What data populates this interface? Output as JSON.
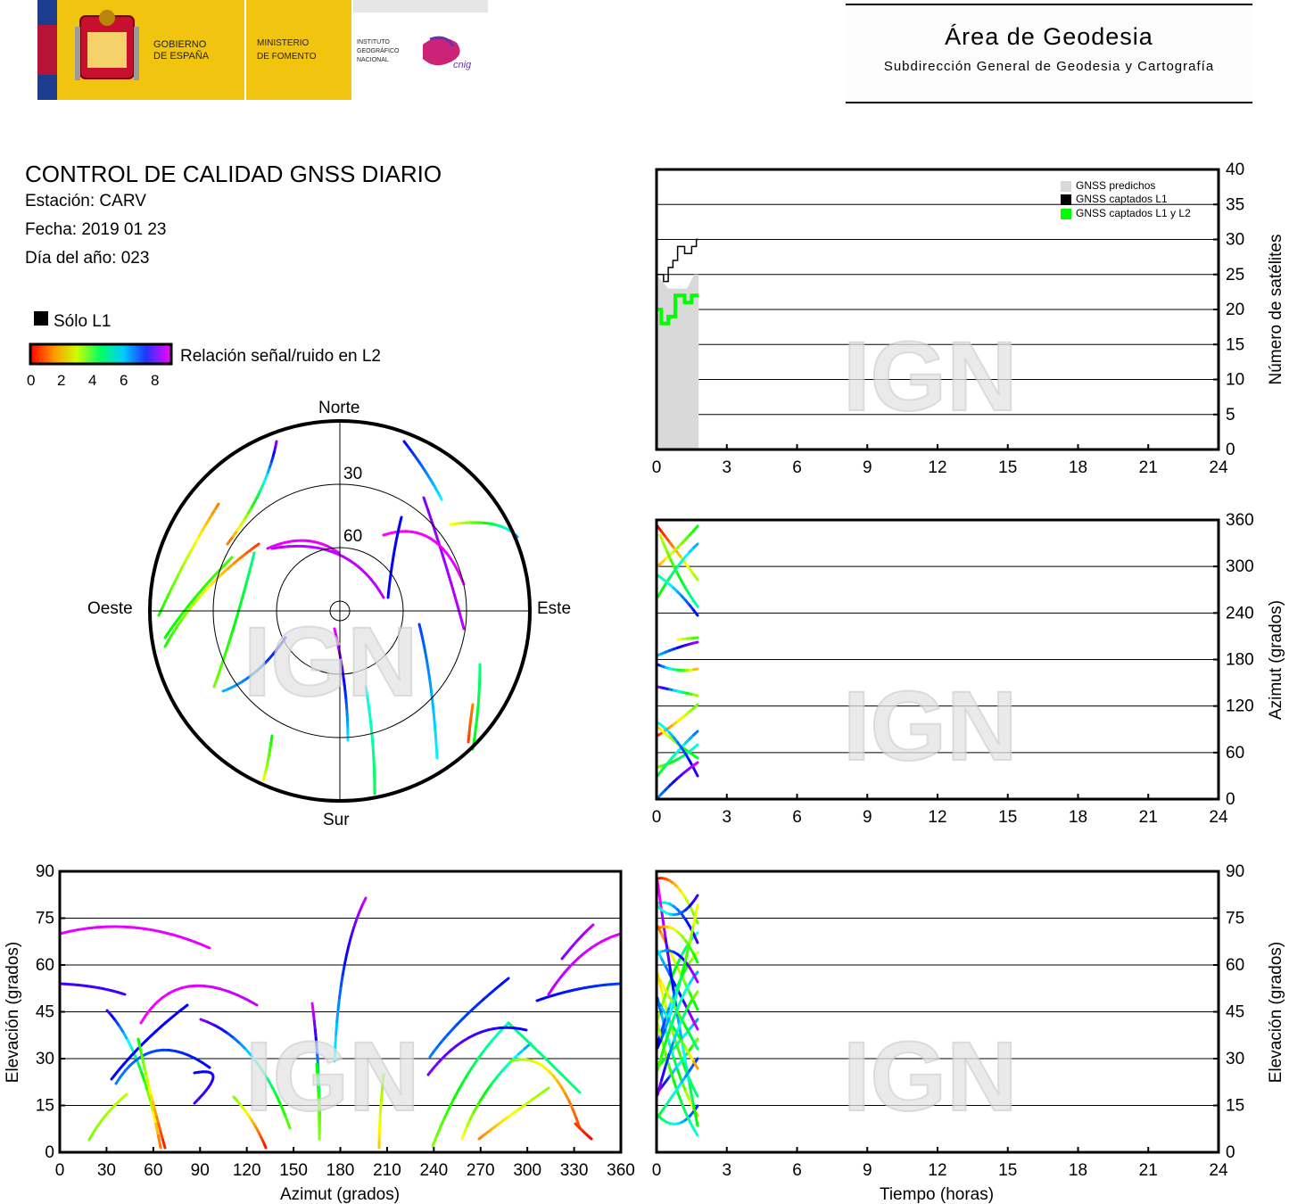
{
  "header": {
    "gov_line1": "GOBIERNO",
    "gov_line2": "DE ESPAÑA",
    "min_line1": "MINISTERIO",
    "min_line2": "DE FOMENTO",
    "inst_line1": "INSTITUTO",
    "inst_line2": "GEOGRÁFICO",
    "inst_line3": "NACIONAL",
    "cnig": "cnig",
    "area_title": "Área de Geodesia",
    "area_subtitle": "Subdirección General de Geodesia y Cartografía"
  },
  "info": {
    "title": "CONTROL DE CALIDAD GNSS DIARIO",
    "station": "Estación: CARV",
    "date": "Fecha: 2019 01 23",
    "doy": "Día del año: 023"
  },
  "legend": {
    "l1_only": "Sólo L1",
    "snr_label": "Relación señal/ruido en L2",
    "snr_ticks": [
      "0",
      "2",
      "4",
      "6",
      "8"
    ]
  },
  "watermark": "IGN",
  "colors": {
    "predicted": "#d9d9d9",
    "l1": "#000000",
    "l1l2": "#00ff00"
  },
  "skyplot": {
    "north": "Norte",
    "south": "Sur",
    "east": "Este",
    "west": "Oeste",
    "ring_labels": [
      "30",
      "60"
    ]
  },
  "chart_data": [
    {
      "type": "line",
      "name": "satellites-vs-time",
      "ylabel": "Número de satélites",
      "xlim": [
        0,
        24
      ],
      "ylim": [
        0,
        40
      ],
      "xticks": [
        0,
        3,
        6,
        9,
        12,
        15,
        18,
        21,
        24
      ],
      "yticks": [
        0,
        5,
        10,
        15,
        20,
        25,
        30,
        35,
        40
      ],
      "legend": [
        "GNSS predichos",
        "GNSS captados L1",
        "GNSS captados L1 y L2"
      ],
      "legend_position": "top-right",
      "grid": true,
      "series": [
        {
          "name": "GNSS predichos",
          "x": [
            0,
            0.5,
            1.0,
            1.3,
            1.6,
            1.8
          ],
          "y": [
            25,
            23,
            23,
            23,
            25,
            25
          ]
        },
        {
          "name": "GNSS captados L1",
          "x": [
            0,
            0.3,
            0.5,
            0.7,
            0.9,
            1.2,
            1.5,
            1.7,
            1.8
          ],
          "y": [
            25,
            24,
            26,
            27,
            29,
            28,
            29,
            30,
            30
          ]
        },
        {
          "name": "GNSS captados L1 y L2",
          "x": [
            0,
            0.2,
            0.5,
            0.8,
            1.2,
            1.5,
            1.8
          ],
          "y": [
            20,
            18,
            19,
            22,
            21,
            22,
            22
          ]
        }
      ]
    },
    {
      "type": "line",
      "name": "azimuth-vs-time",
      "ylabel": "Azimut (grados)",
      "xlim": [
        0,
        24
      ],
      "ylim": [
        0,
        360
      ],
      "xticks": [
        0,
        3,
        6,
        9,
        12,
        15,
        18,
        21,
        24
      ],
      "yticks": [
        0,
        60,
        120,
        180,
        240,
        300,
        360
      ],
      "grid": true
    },
    {
      "type": "line",
      "name": "elevation-vs-azimuth",
      "xlabel": "Azimut (grados)",
      "ylabel": "Elevación (grados)",
      "xlim": [
        0,
        360
      ],
      "ylim": [
        0,
        90
      ],
      "xticks": [
        0,
        30,
        60,
        90,
        120,
        150,
        180,
        210,
        240,
        270,
        300,
        330,
        360
      ],
      "yticks": [
        0,
        15,
        30,
        45,
        60,
        75,
        90
      ],
      "grid": true
    },
    {
      "type": "line",
      "name": "elevation-vs-time",
      "xlabel": "Tiempo (horas)",
      "ylabel": "Elevación (grados)",
      "xlim": [
        0,
        24
      ],
      "ylim": [
        0,
        90
      ],
      "xticks": [
        0,
        3,
        6,
        9,
        12,
        15,
        18,
        21,
        24
      ],
      "yticks": [
        0,
        15,
        30,
        45,
        60,
        75,
        90
      ],
      "grid": true
    }
  ]
}
